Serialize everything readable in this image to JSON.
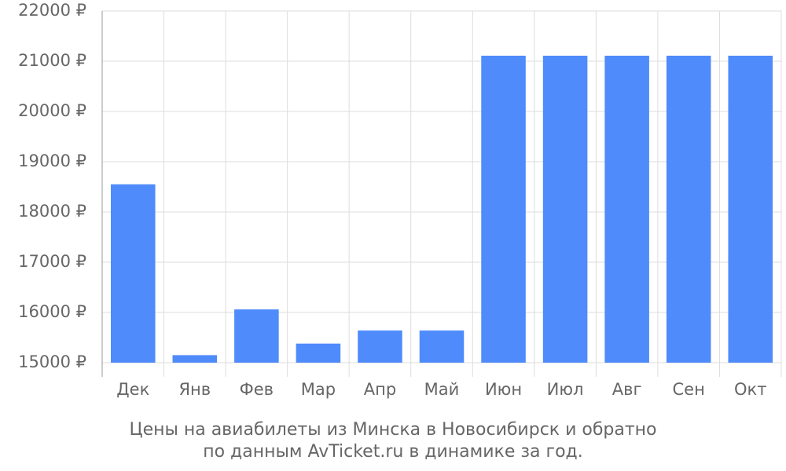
{
  "chart_data": {
    "type": "bar",
    "title": [
      "Цены на авиабилеты из Минска в Новосибирск и обратно",
      "по данным AvTicket.ru в динамике за год."
    ],
    "categories": [
      "Дек",
      "Янв",
      "Фев",
      "Мар",
      "Апр",
      "Май",
      "Июн",
      "Июл",
      "Авг",
      "Сен",
      "Окт"
    ],
    "values": [
      18550,
      15150,
      16060,
      15380,
      15640,
      15640,
      21110,
      21110,
      21110,
      21110,
      21110
    ],
    "color": "#4f8bfb",
    "ylim": [
      15000,
      22000
    ],
    "yticks": [
      {
        "value": 15000,
        "label": "15000 ₽"
      },
      {
        "value": 16000,
        "label": "16000 ₽"
      },
      {
        "value": 17000,
        "label": "17000 ₽"
      },
      {
        "value": 18000,
        "label": "18000 ₽"
      },
      {
        "value": 19000,
        "label": "19000 ₽"
      },
      {
        "value": 20000,
        "label": "20000 ₽"
      },
      {
        "value": 21000,
        "label": "21000 ₽"
      },
      {
        "value": 22000,
        "label": "22000 ₽"
      }
    ],
    "grid": true
  }
}
